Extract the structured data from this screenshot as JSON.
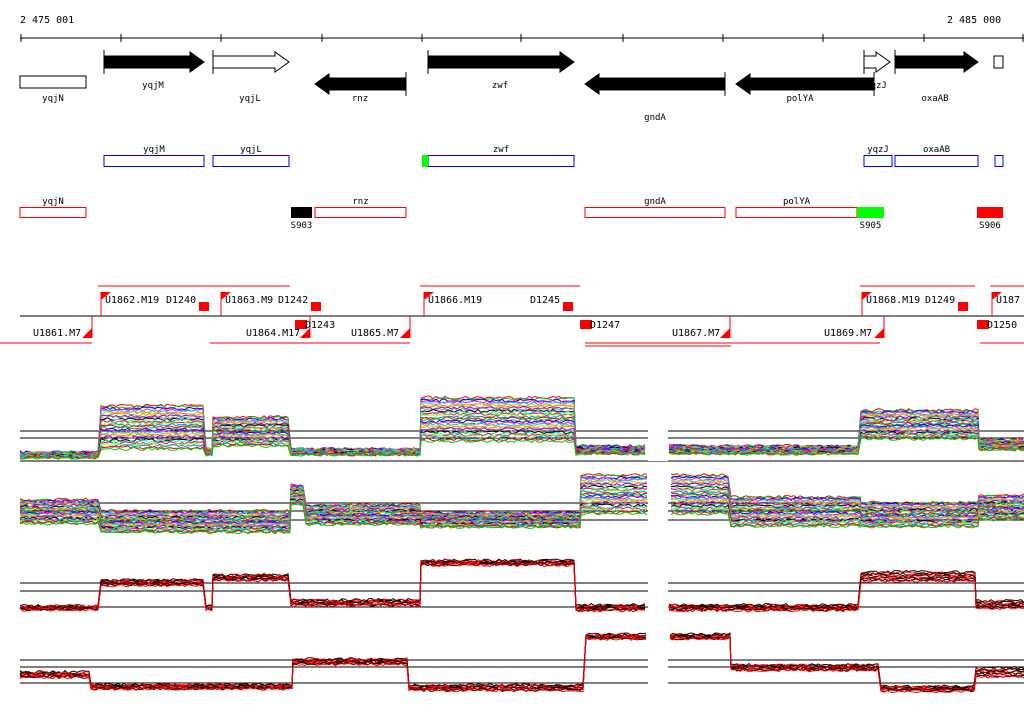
{
  "ruler": {
    "start_label": "2 475 001",
    "end_label": "2 485 000"
  },
  "genes": [
    {
      "name": "yqjN",
      "strand": "none",
      "fill": "white"
    },
    {
      "name": "yqjM",
      "strand": "+",
      "fill": "black"
    },
    {
      "name": "yqjL",
      "strand": "+",
      "fill": "white"
    },
    {
      "name": "rnz",
      "strand": "-",
      "fill": "black"
    },
    {
      "name": "zwf",
      "strand": "+",
      "fill": "black"
    },
    {
      "name": "gndA",
      "strand": "-",
      "fill": "black"
    },
    {
      "name": "polYA",
      "strand": "-",
      "fill": "black"
    },
    {
      "name": "yqzJ",
      "strand": "+",
      "fill": "white"
    },
    {
      "name": "oxaAB",
      "strand": "+",
      "fill": "black"
    }
  ],
  "plus_transcripts": [
    "yqjM",
    "yqjL",
    "zwf",
    "yqzJ",
    "oxaAB"
  ],
  "minus_transcripts": [
    "yqjN",
    "rnz",
    "gndA",
    "polYA"
  ],
  "segments": [
    "S903",
    "S905",
    "S906"
  ],
  "upstream_labels": {
    "above": [
      "U1862.M19",
      "D1240",
      "U1863.M9",
      "D1242",
      "U1866.M19",
      "D1245",
      "U1868.M19",
      "D1249",
      "U187"
    ],
    "below": [
      "U1861.M7",
      "U1864.M17",
      "D1243",
      "U1865.M7",
      "D1247",
      "U1867.M7",
      "U1869.M7",
      "D1250"
    ]
  },
  "colors": {
    "plus": "#0000ff",
    "minus": "#ff0000",
    "green": "#00ff00",
    "black": "#000000"
  }
}
